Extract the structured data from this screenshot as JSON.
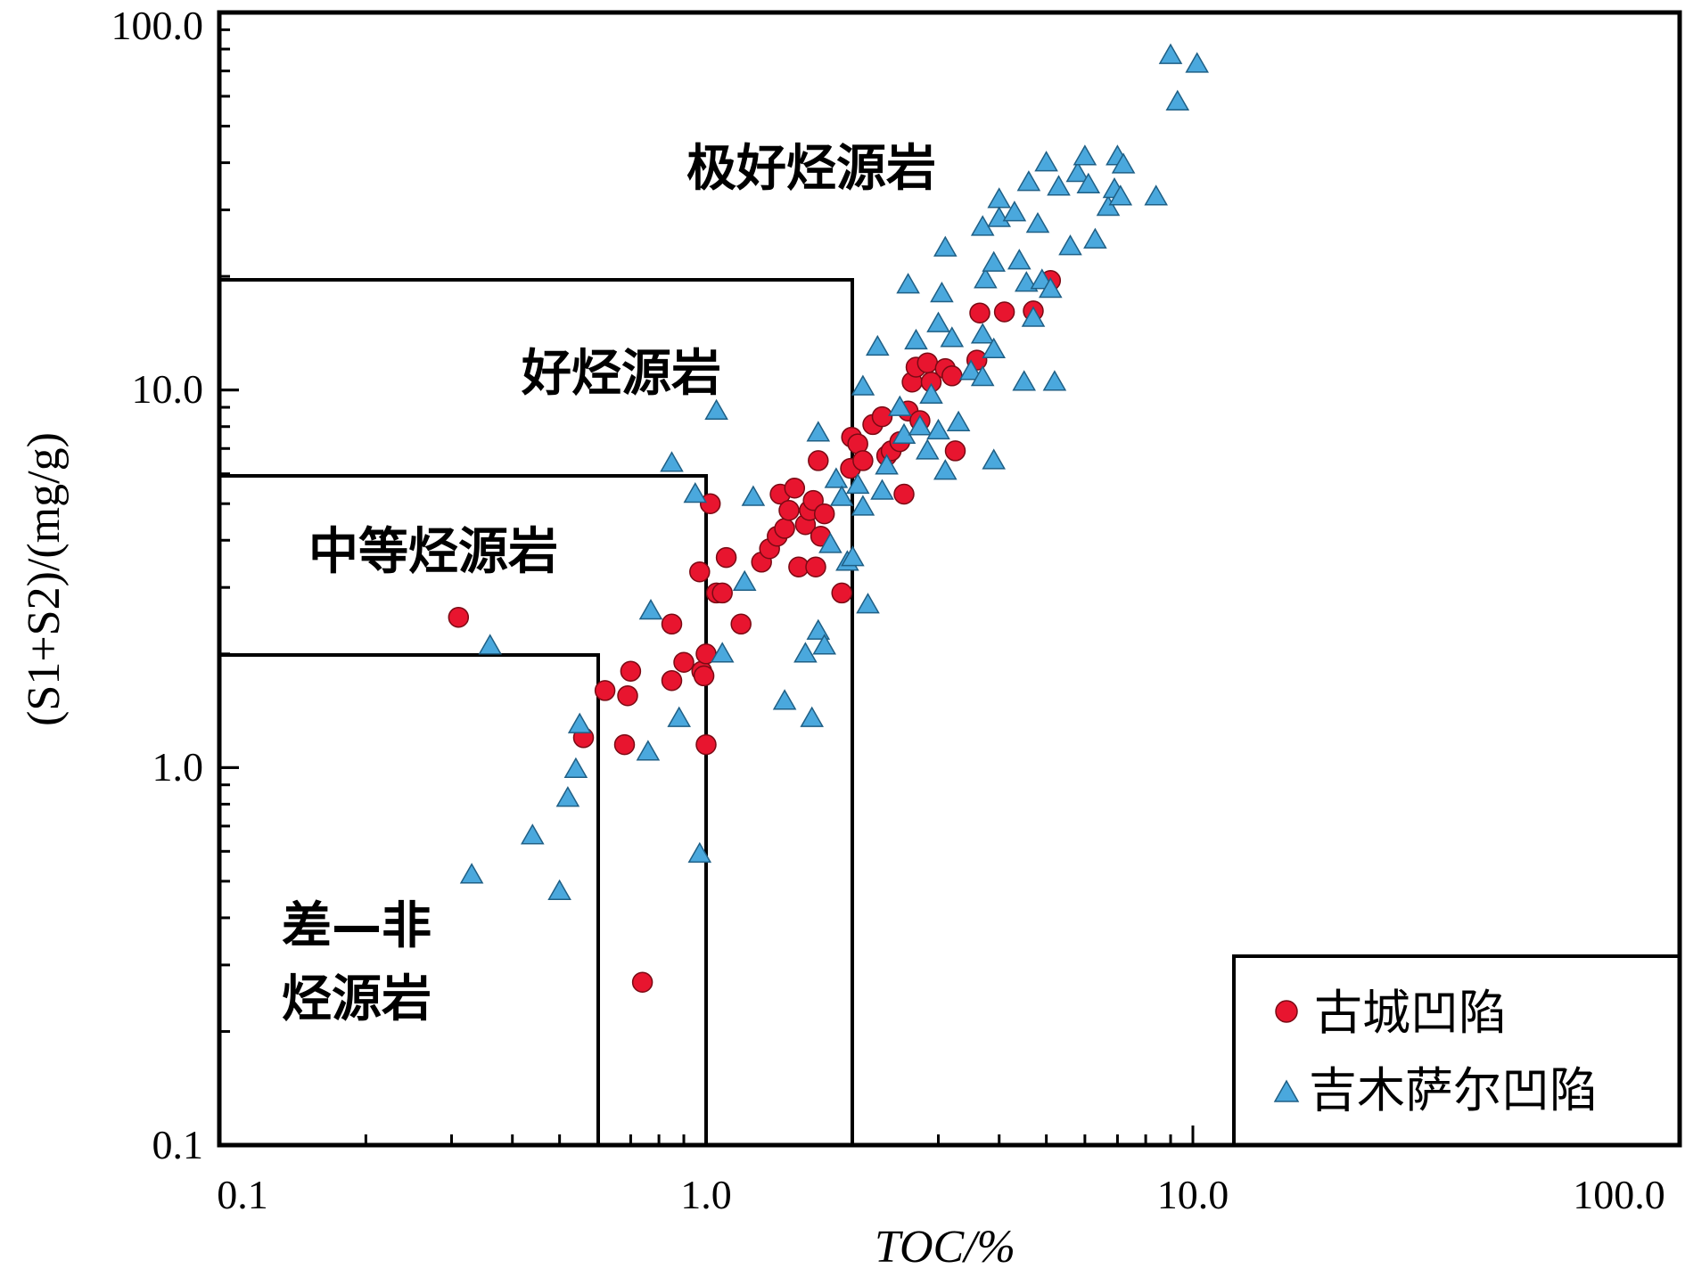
{
  "chart_data": {
    "type": "scatter",
    "xlabel": "TOC/%",
    "ylabel": "(S1+S2)/(mg/g)",
    "xscale": "log",
    "yscale": "log",
    "xlim": [
      0.1,
      100
    ],
    "ylim": [
      0.1,
      100
    ],
    "x_ticks": [
      "0.1",
      "1.0",
      "10.0",
      "100.0"
    ],
    "y_ticks": [
      "0.1",
      "1.0",
      "10.0",
      "100.0"
    ],
    "regions": [
      {
        "label": "差—非",
        "label2": "烃源岩",
        "xmax": 0.6,
        "ymax": 2.0
      },
      {
        "label": "中等烃源岩",
        "xmax": 1.0,
        "ymax": 6.0
      },
      {
        "label": "好烃源岩",
        "xmax": 2.0,
        "ymax": 20.0
      },
      {
        "label": "极好烃源岩"
      }
    ],
    "legend_position": "bottom-right",
    "colors": {
      "gucheng": "#e8152f",
      "jimusaer": "#4aa8dd"
    },
    "series": [
      {
        "name": "古城凹陷",
        "marker": "circle",
        "points": [
          [
            0.31,
            2.5
          ],
          [
            0.74,
            0.27
          ],
          [
            0.56,
            1.2
          ],
          [
            0.62,
            1.6
          ],
          [
            0.68,
            1.15
          ],
          [
            0.69,
            1.55
          ],
          [
            0.7,
            1.8
          ],
          [
            0.85,
            2.4
          ],
          [
            0.85,
            1.7
          ],
          [
            0.9,
            1.9
          ],
          [
            0.97,
            3.3
          ],
          [
            0.98,
            1.8
          ],
          [
            0.99,
            1.75
          ],
          [
            1.0,
            1.15
          ],
          [
            1.0,
            2.0
          ],
          [
            1.02,
            5.0
          ],
          [
            1.05,
            2.9
          ],
          [
            1.08,
            2.9
          ],
          [
            1.1,
            3.6
          ],
          [
            1.18,
            2.4
          ],
          [
            1.3,
            3.5
          ],
          [
            1.35,
            3.8
          ],
          [
            1.4,
            4.1
          ],
          [
            1.42,
            5.3
          ],
          [
            1.45,
            4.3
          ],
          [
            1.48,
            4.8
          ],
          [
            1.52,
            5.5
          ],
          [
            1.55,
            3.4
          ],
          [
            1.6,
            4.4
          ],
          [
            1.63,
            4.8
          ],
          [
            1.66,
            5.1
          ],
          [
            1.68,
            3.4
          ],
          [
            1.7,
            6.5
          ],
          [
            1.72,
            4.1
          ],
          [
            1.75,
            4.7
          ],
          [
            1.9,
            2.9
          ],
          [
            1.98,
            6.2
          ],
          [
            1.99,
            7.5
          ],
          [
            2.05,
            7.2
          ],
          [
            2.1,
            6.5
          ],
          [
            2.2,
            8.1
          ],
          [
            2.3,
            8.5
          ],
          [
            2.35,
            6.7
          ],
          [
            2.4,
            6.9
          ],
          [
            2.5,
            7.3
          ],
          [
            2.55,
            5.3
          ],
          [
            2.6,
            8.8
          ],
          [
            2.65,
            10.5
          ],
          [
            2.7,
            11.5
          ],
          [
            2.75,
            8.3
          ],
          [
            2.85,
            11.8
          ],
          [
            2.9,
            10.5
          ],
          [
            3.1,
            11.4
          ],
          [
            3.2,
            10.9
          ],
          [
            3.25,
            6.9
          ],
          [
            3.6,
            12.0
          ],
          [
            3.65,
            16.0
          ],
          [
            4.1,
            16.1
          ],
          [
            4.7,
            16.2
          ],
          [
            5.1,
            19.5
          ]
        ]
      },
      {
        "name": "吉木萨尔凹陷",
        "marker": "triangle",
        "points": [
          [
            0.33,
            0.52
          ],
          [
            0.36,
            2.1
          ],
          [
            0.44,
            0.66
          ],
          [
            0.5,
            0.47
          ],
          [
            0.52,
            0.83
          ],
          [
            0.54,
            0.99
          ],
          [
            0.55,
            1.3
          ],
          [
            0.76,
            1.1
          ],
          [
            0.77,
            2.6
          ],
          [
            0.85,
            6.4
          ],
          [
            0.88,
            1.35
          ],
          [
            0.95,
            5.3
          ],
          [
            0.97,
            0.59
          ],
          [
            1.05,
            8.8
          ],
          [
            1.08,
            2.0
          ],
          [
            1.2,
            3.1
          ],
          [
            1.25,
            5.2
          ],
          [
            1.45,
            1.5
          ],
          [
            1.6,
            2.0
          ],
          [
            1.65,
            1.35
          ],
          [
            1.7,
            2.3
          ],
          [
            1.7,
            7.7
          ],
          [
            1.75,
            2.1
          ],
          [
            1.8,
            3.9
          ],
          [
            1.85,
            5.8
          ],
          [
            1.9,
            5.2
          ],
          [
            1.95,
            3.5
          ],
          [
            2.0,
            3.6
          ],
          [
            2.05,
            5.6
          ],
          [
            2.1,
            4.9
          ],
          [
            2.1,
            10.2
          ],
          [
            2.15,
            2.7
          ],
          [
            2.25,
            13.0
          ],
          [
            2.3,
            5.4
          ],
          [
            2.35,
            6.3
          ],
          [
            2.5,
            9.0
          ],
          [
            2.55,
            7.6
          ],
          [
            2.6,
            19.0
          ],
          [
            2.7,
            13.5
          ],
          [
            2.75,
            8.0
          ],
          [
            2.85,
            6.9
          ],
          [
            2.9,
            9.7
          ],
          [
            3.0,
            7.8
          ],
          [
            3.0,
            15.0
          ],
          [
            3.05,
            18.0
          ],
          [
            3.1,
            6.1
          ],
          [
            3.1,
            23.8
          ],
          [
            3.2,
            13.7
          ],
          [
            3.3,
            8.2
          ],
          [
            3.5,
            11.2
          ],
          [
            3.7,
            10.8
          ],
          [
            3.7,
            27.0
          ],
          [
            3.7,
            14.0
          ],
          [
            3.75,
            19.6
          ],
          [
            3.9,
            21.7
          ],
          [
            3.9,
            6.5
          ],
          [
            3.9,
            12.8
          ],
          [
            4.0,
            32.0
          ],
          [
            4.0,
            28.5
          ],
          [
            4.3,
            29.5
          ],
          [
            4.4,
            22.0
          ],
          [
            4.5,
            10.5
          ],
          [
            4.55,
            19.2
          ],
          [
            4.6,
            35.5
          ],
          [
            4.7,
            15.5
          ],
          [
            4.8,
            27.5
          ],
          [
            4.9,
            19.5
          ],
          [
            5.0,
            40.0
          ],
          [
            5.1,
            18.5
          ],
          [
            5.2,
            10.5
          ],
          [
            5.3,
            34.5
          ],
          [
            5.6,
            24.0
          ],
          [
            5.8,
            37.5
          ],
          [
            6.0,
            41.5
          ],
          [
            6.1,
            35.0
          ],
          [
            6.3,
            25.0
          ],
          [
            6.7,
            30.5
          ],
          [
            6.9,
            34.0
          ],
          [
            7.0,
            41.5
          ],
          [
            7.1,
            32.5
          ],
          [
            7.2,
            39.5
          ],
          [
            8.4,
            32.5
          ],
          [
            9.0,
            77.0
          ],
          [
            9.3,
            58.0
          ],
          [
            10.2,
            73.0
          ]
        ]
      }
    ]
  },
  "legend": {
    "items": [
      {
        "label": "古城凹陷",
        "marker": "circle"
      },
      {
        "label": "吉木萨尔凹陷",
        "marker": "triangle"
      }
    ]
  }
}
